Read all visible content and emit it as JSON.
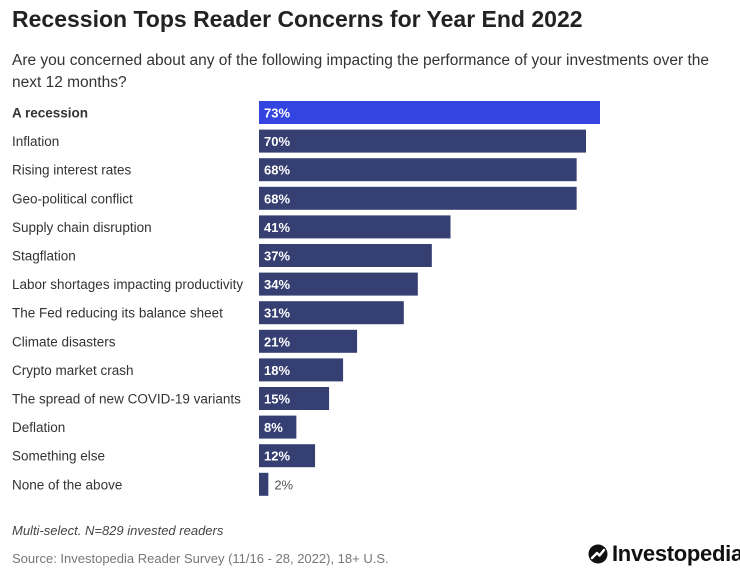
{
  "title": "Recession Tops Reader Concerns for Year End 2022",
  "subtitle": "Are you concerned about any of the following impacting the performance of your investments over the next 12 months?",
  "note": "Multi-select. N=829 invested readers",
  "source": "Source: Investopedia Reader Survey (11/16 - 28, 2022), 18+ U.S.",
  "brand": {
    "name": "Investopedia",
    "logo_icon": "investopedia-logo-icon"
  },
  "colors": {
    "highlight": "#3344e0",
    "bar": "#363f72",
    "label_light": "#ffffff",
    "label_dark": "#555555"
  },
  "chart_data": {
    "type": "bar",
    "orientation": "horizontal",
    "categories": [
      "A recession",
      "Inflation",
      "Rising interest rates",
      "Geo-political conflict",
      "Supply chain disruption",
      "Stagflation",
      "Labor shortages impacting productivity",
      "The Fed reducing its balance sheet",
      "Climate disasters",
      "Crypto market crash",
      "The spread of new COVID-19 variants",
      "Deflation",
      "Something else",
      "None of the above"
    ],
    "values": [
      73,
      70,
      68,
      68,
      41,
      37,
      34,
      31,
      21,
      18,
      15,
      8,
      12,
      2
    ],
    "data_labels": [
      "73%",
      "70%",
      "68%",
      "68%",
      "41%",
      "37%",
      "34%",
      "31%",
      "21%",
      "18%",
      "15%",
      "8%",
      "12%",
      "2%"
    ],
    "highlight_index": 0,
    "xlim": [
      0,
      73
    ],
    "grid": false,
    "legend": "none"
  }
}
